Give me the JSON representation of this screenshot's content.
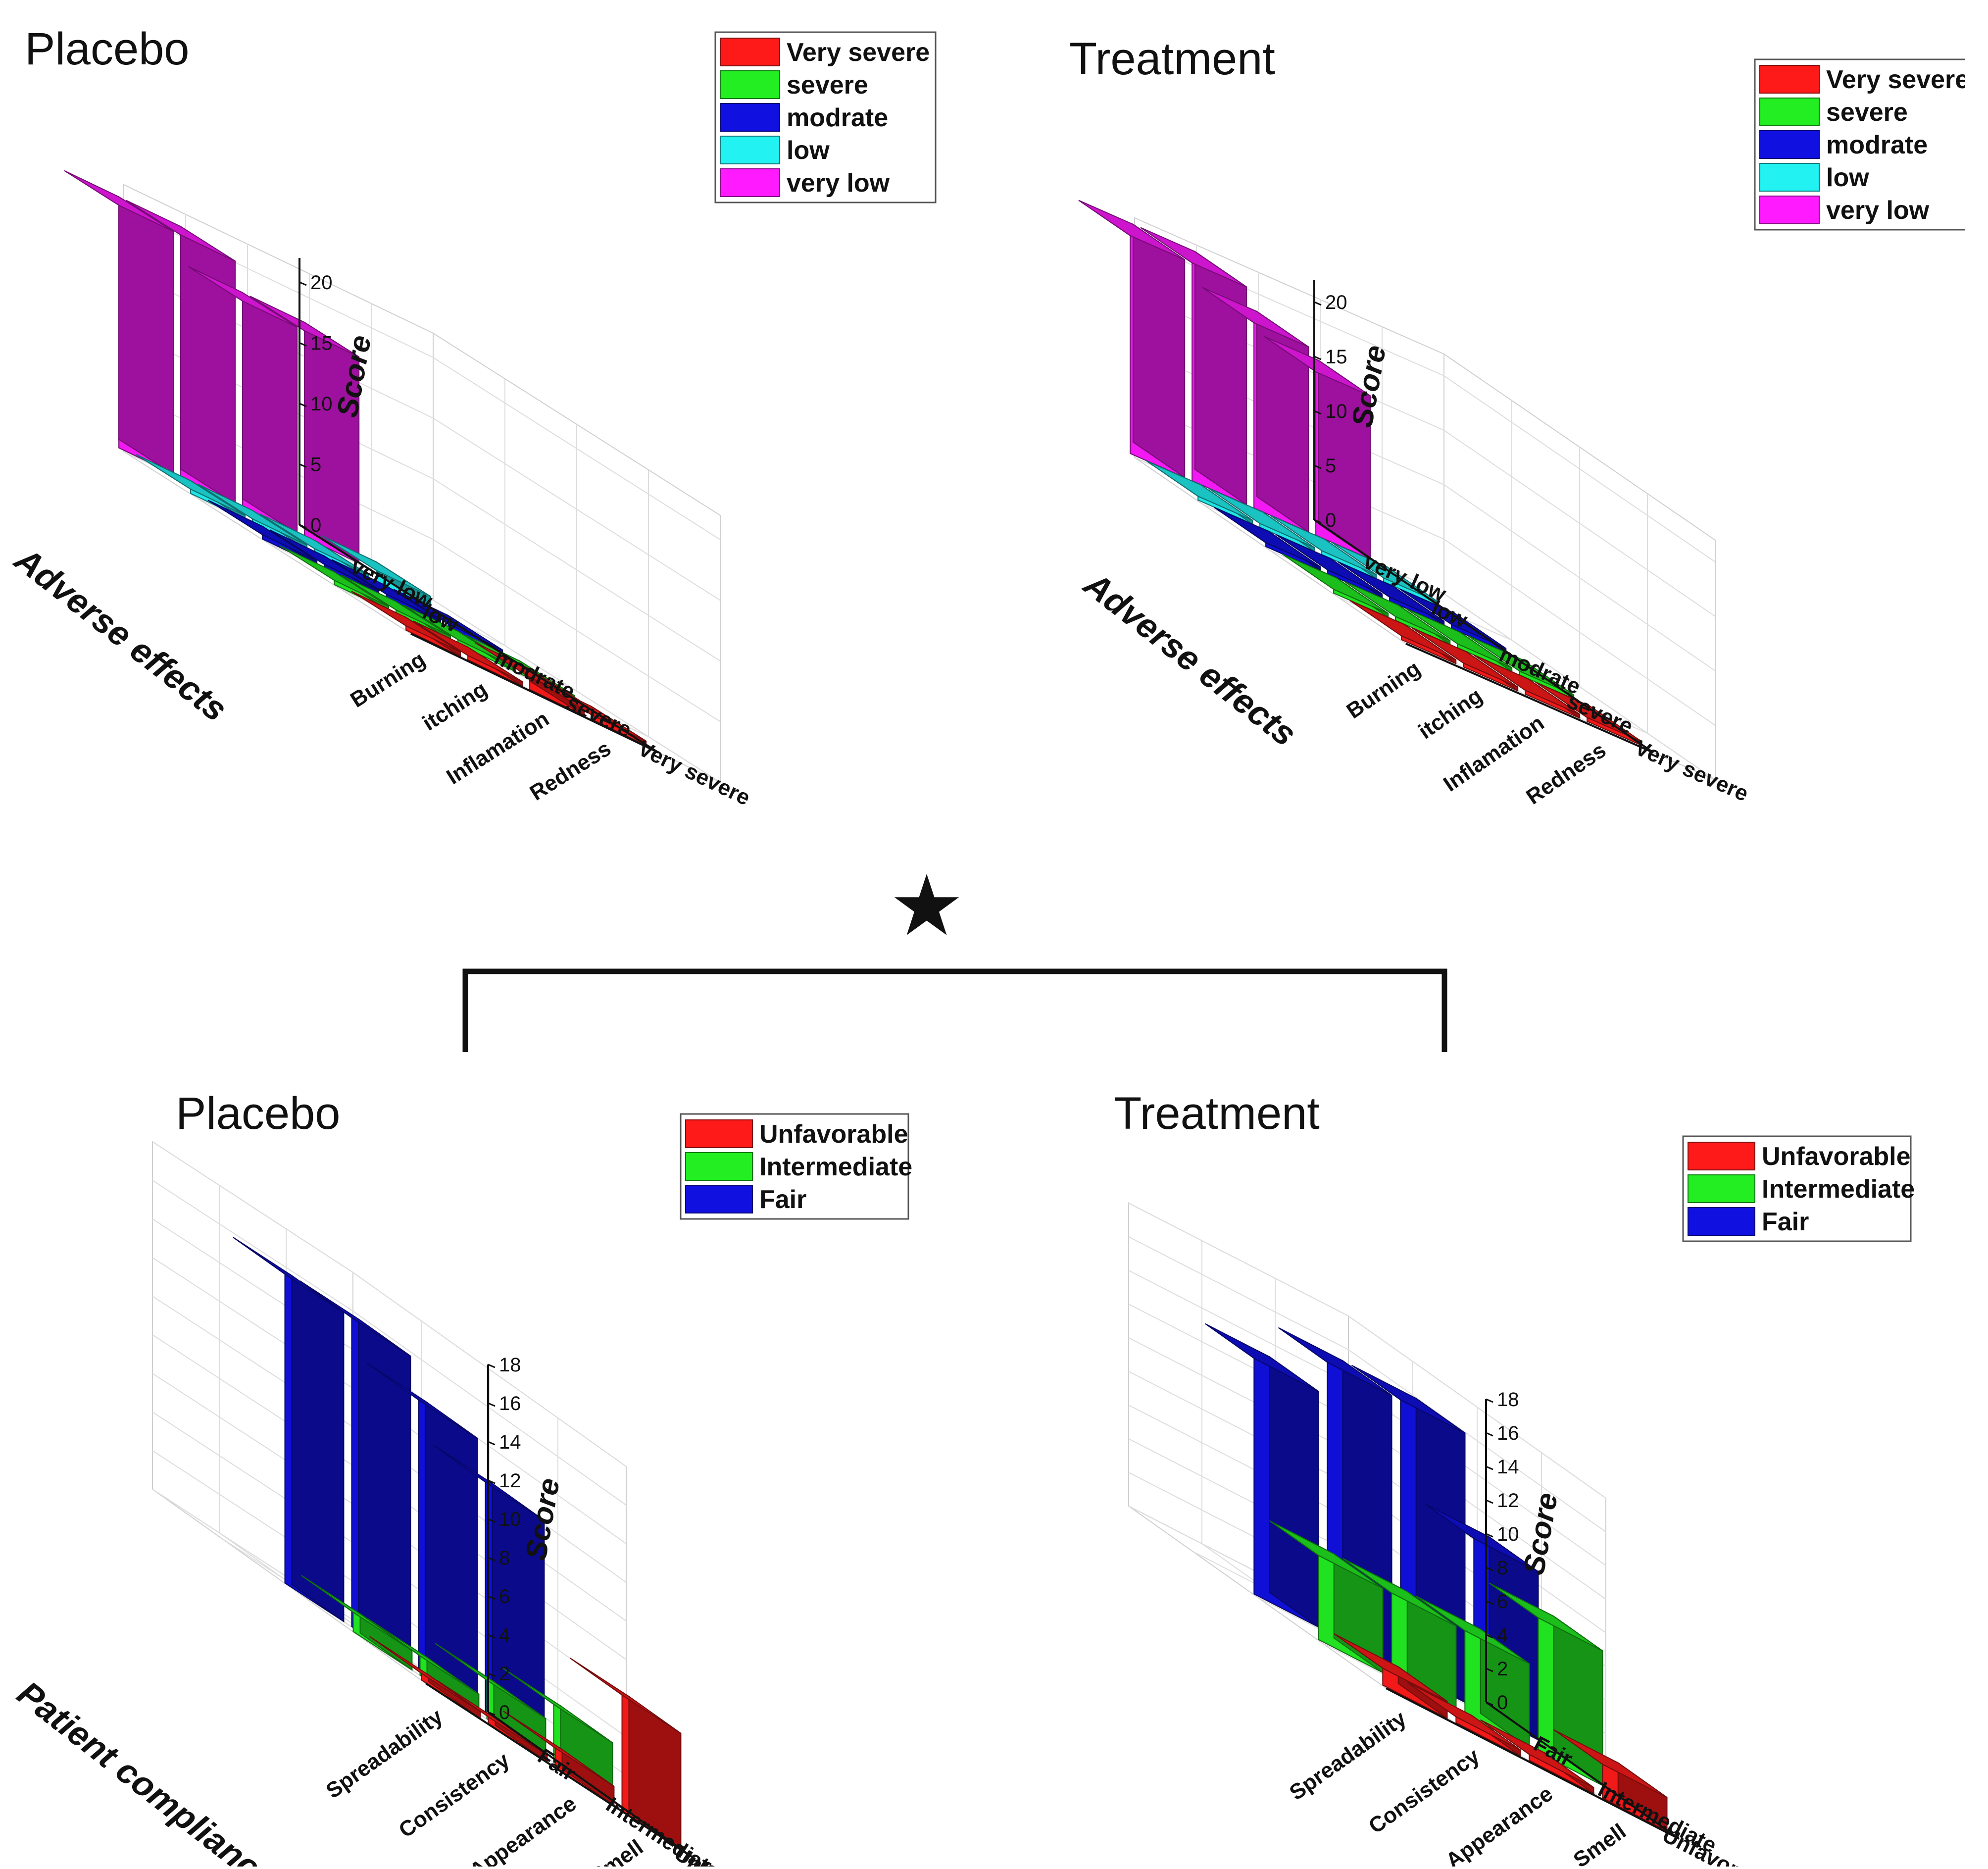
{
  "figure": {
    "significance_symbol": "★"
  },
  "chart_data": [
    {
      "type": "bar3d",
      "title": "Placebo",
      "row_axis_title": "Adverse effects",
      "rows": [
        "Burning",
        "itching",
        "Inflamation",
        "Redness"
      ],
      "columns": [
        "Very severe",
        "severe",
        "modrate",
        "low",
        "very low"
      ],
      "z_title": "Score",
      "zlim": [
        0,
        22
      ],
      "z_ticks": [
        0,
        5,
        10,
        15,
        20
      ],
      "legend": [
        {
          "label": "Very severe",
          "color": "#ff1a1a"
        },
        {
          "label": "severe",
          "color": "#22ee22"
        },
        {
          "label": "modrate",
          "color": "#1010e0"
        },
        {
          "label": "low",
          "color": "#22f2f2"
        },
        {
          "label": "very low",
          "color": "#ff1aff"
        }
      ],
      "values": [
        [
          0,
          0,
          0,
          0,
          20
        ],
        [
          0,
          0,
          0,
          0,
          20
        ],
        [
          1,
          0,
          0,
          0,
          17
        ],
        [
          0,
          0,
          0,
          1,
          17
        ]
      ]
    },
    {
      "type": "bar3d",
      "title": "Treatment",
      "row_axis_title": "Adverse effects",
      "rows": [
        "Burning",
        "itching",
        "Inflamation",
        "Redness"
      ],
      "columns": [
        "Very severe",
        "severe",
        "modrate",
        "low",
        "very low"
      ],
      "z_title": "Score",
      "zlim": [
        0,
        22
      ],
      "z_ticks": [
        0,
        5,
        10,
        15,
        20
      ],
      "legend": [
        {
          "label": "Very severe",
          "color": "#ff1a1a"
        },
        {
          "label": "severe",
          "color": "#22ee22"
        },
        {
          "label": "modrate",
          "color": "#1010e0"
        },
        {
          "label": "low",
          "color": "#22f2f2"
        },
        {
          "label": "very low",
          "color": "#ff1aff"
        }
      ],
      "values": [
        [
          0,
          0,
          0,
          0,
          20
        ],
        [
          0,
          0,
          0,
          0,
          20
        ],
        [
          0,
          0,
          0,
          0,
          17
        ],
        [
          0,
          0,
          0,
          0,
          15
        ]
      ]
    },
    {
      "type": "bar3d",
      "title": "Placebo",
      "row_axis_title": "Patient compliance",
      "rows": [
        "Spreadability",
        "Consistency",
        "Appearance",
        "Smell"
      ],
      "columns": [
        "Unfavorable",
        "Intermediate",
        "Fair"
      ],
      "z_title": "Score",
      "zlim": [
        0,
        18
      ],
      "z_ticks": [
        0,
        2,
        4,
        6,
        8,
        10,
        12,
        14,
        16,
        18
      ],
      "legend": [
        {
          "label": "Unfavorable",
          "color": "#ff1a1a"
        },
        {
          "label": "Intermediate",
          "color": "#22ee22"
        },
        {
          "label": "Fair",
          "color": "#1010e0"
        }
      ],
      "values": [
        [
          0,
          1,
          16
        ],
        [
          0,
          1,
          16
        ],
        [
          1,
          2,
          14
        ],
        [
          6,
          3,
          12
        ]
      ]
    },
    {
      "type": "bar3d",
      "title": "Treatment",
      "row_axis_title": "",
      "rows": [
        "Spreadability",
        "Consistency",
        "Appearance",
        "Smell"
      ],
      "columns": [
        "Unfavorable",
        "Intermediate",
        "Fair"
      ],
      "z_title": "Score",
      "zlim": [
        0,
        18
      ],
      "z_ticks": [
        0,
        2,
        4,
        6,
        8,
        10,
        12,
        14,
        16,
        18
      ],
      "legend": [
        {
          "label": "Unfavorable",
          "color": "#ff1a1a"
        },
        {
          "label": "Intermediate",
          "color": "#22ee22"
        },
        {
          "label": "Fair",
          "color": "#1010e0"
        }
      ],
      "values": [
        [
          1,
          5,
          14
        ],
        [
          0,
          5,
          16
        ],
        [
          0,
          5,
          16
        ],
        [
          2,
          8,
          10
        ]
      ]
    }
  ]
}
